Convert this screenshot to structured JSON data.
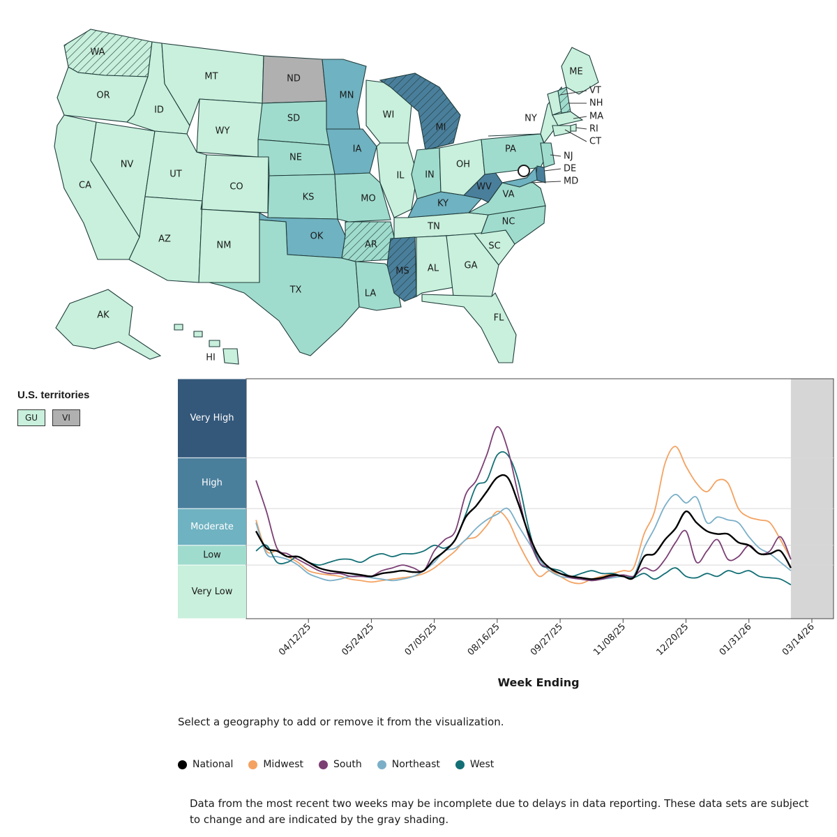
{
  "map": {
    "level_colors": {
      "very_low": "#c8f0dc",
      "low": "#a0dccd",
      "moderate": "#6fb2c1",
      "high": "#4a7f9c",
      "very_high": "#34587a",
      "no_data": "#b0b0b0"
    },
    "states": [
      {
        "abbr": "WA",
        "level": "very_low",
        "hatched": true
      },
      {
        "abbr": "OR",
        "level": "very_low",
        "hatched": false
      },
      {
        "abbr": "CA",
        "level": "very_low",
        "hatched": false
      },
      {
        "abbr": "NV",
        "level": "very_low",
        "hatched": false
      },
      {
        "abbr": "ID",
        "level": "very_low",
        "hatched": false
      },
      {
        "abbr": "MT",
        "level": "very_low",
        "hatched": false
      },
      {
        "abbr": "WY",
        "level": "very_low",
        "hatched": false
      },
      {
        "abbr": "UT",
        "level": "very_low",
        "hatched": false
      },
      {
        "abbr": "CO",
        "level": "very_low",
        "hatched": false
      },
      {
        "abbr": "AZ",
        "level": "very_low",
        "hatched": false
      },
      {
        "abbr": "NM",
        "level": "very_low",
        "hatched": false
      },
      {
        "abbr": "ND",
        "level": "no_data",
        "hatched": false
      },
      {
        "abbr": "SD",
        "level": "low",
        "hatched": false
      },
      {
        "abbr": "NE",
        "level": "low",
        "hatched": false
      },
      {
        "abbr": "KS",
        "level": "low",
        "hatched": false
      },
      {
        "abbr": "OK",
        "level": "moderate",
        "hatched": false
      },
      {
        "abbr": "TX",
        "level": "low",
        "hatched": false
      },
      {
        "abbr": "MN",
        "level": "moderate",
        "hatched": false
      },
      {
        "abbr": "IA",
        "level": "moderate",
        "hatched": false
      },
      {
        "abbr": "MO",
        "level": "low",
        "hatched": false
      },
      {
        "abbr": "AR",
        "level": "low",
        "hatched": true
      },
      {
        "abbr": "LA",
        "level": "low",
        "hatched": false
      },
      {
        "abbr": "WI",
        "level": "very_low",
        "hatched": false
      },
      {
        "abbr": "IL",
        "level": "very_low",
        "hatched": false
      },
      {
        "abbr": "MI",
        "level": "high",
        "hatched": true
      },
      {
        "abbr": "IN",
        "level": "low",
        "hatched": false
      },
      {
        "abbr": "OH",
        "level": "very_low",
        "hatched": false
      },
      {
        "abbr": "KY",
        "level": "moderate",
        "hatched": false
      },
      {
        "abbr": "TN",
        "level": "very_low",
        "hatched": false
      },
      {
        "abbr": "MS",
        "level": "high",
        "hatched": true
      },
      {
        "abbr": "AL",
        "level": "very_low",
        "hatched": false
      },
      {
        "abbr": "GA",
        "level": "very_low",
        "hatched": false
      },
      {
        "abbr": "FL",
        "level": "very_low",
        "hatched": false
      },
      {
        "abbr": "SC",
        "level": "very_low",
        "hatched": false
      },
      {
        "abbr": "NC",
        "level": "low",
        "hatched": false
      },
      {
        "abbr": "VA",
        "level": "low",
        "hatched": false
      },
      {
        "abbr": "WV",
        "level": "high",
        "hatched": false
      },
      {
        "abbr": "PA",
        "level": "low",
        "hatched": false
      },
      {
        "abbr": "NY",
        "level": "very_low",
        "hatched": false
      },
      {
        "abbr": "ME",
        "level": "very_low",
        "hatched": false
      },
      {
        "abbr": "VT",
        "level": "very_low",
        "hatched": false
      },
      {
        "abbr": "NH",
        "level": "low",
        "hatched": true
      },
      {
        "abbr": "MA",
        "level": "very_low",
        "hatched": false
      },
      {
        "abbr": "RI",
        "level": "very_low",
        "hatched": false
      },
      {
        "abbr": "CT",
        "level": "very_low",
        "hatched": false
      },
      {
        "abbr": "NJ",
        "level": "low",
        "hatched": false
      },
      {
        "abbr": "DE",
        "level": "high",
        "hatched": false
      },
      {
        "abbr": "MD",
        "level": "moderate",
        "hatched": false
      },
      {
        "abbr": "AK",
        "level": "very_low",
        "hatched": false
      },
      {
        "abbr": "HI",
        "level": "very_low",
        "hatched": false
      }
    ],
    "callouts": [
      "VT",
      "NH",
      "MA",
      "RI",
      "CT",
      "NJ",
      "DE",
      "MD"
    ]
  },
  "territories": {
    "title": "U.S. territories",
    "items": [
      {
        "abbr": "GU",
        "level": "very_low"
      },
      {
        "abbr": "VI",
        "level": "no_data"
      }
    ]
  },
  "chart_data": {
    "type": "line",
    "xlabel": "Week Ending",
    "ylabel": "",
    "bands": [
      {
        "label": "Very High",
        "color": "#34587a",
        "text_color": "#ffffff",
        "from": 7.2,
        "to": 10
      },
      {
        "label": "High",
        "color": "#4a7f9c",
        "text_color": "#ffffff",
        "from": 5.4,
        "to": 7.2
      },
      {
        "label": "Moderate",
        "color": "#6fb2c1",
        "text_color": "#ffffff",
        "from": 4.1,
        "to": 5.4
      },
      {
        "label": "Low",
        "color": "#a0dccd",
        "text_color": "#1a1a1a",
        "from": 3.4,
        "to": 4.1
      },
      {
        "label": "Very Low",
        "color": "#c8f0dc",
        "text_color": "#1a1a1a",
        "from": 1.5,
        "to": 3.4
      }
    ],
    "ylim": [
      1.5,
      10
    ],
    "xlim_weeks": [
      0,
      51
    ],
    "x_tick_labels": [
      "04/12/25",
      "05/24/25",
      "07/05/25",
      "08/16/25",
      "09/27/25",
      "11/08/25",
      "12/20/25",
      "01/31/26",
      "03/14/26"
    ],
    "x_tick_weeks": [
      5,
      11,
      17,
      23,
      29,
      35,
      41,
      47,
      53
    ],
    "incomplete_from_week": 51,
    "incomplete_to_week": 54,
    "series": [
      {
        "name": "National",
        "color": "#000000",
        "values": [
          4.6,
          4.0,
          3.9,
          3.7,
          3.7,
          3.5,
          3.3,
          3.2,
          3.15,
          3.1,
          3.05,
          3.0,
          3.1,
          3.15,
          3.2,
          3.15,
          3.2,
          3.6,
          3.9,
          4.3,
          5.1,
          5.5,
          6.0,
          6.5,
          6.5,
          5.6,
          4.5,
          3.7,
          3.3,
          3.1,
          3.0,
          2.95,
          2.9,
          2.95,
          3.05,
          3.0,
          2.95,
          3.7,
          3.8,
          4.3,
          4.7,
          5.3,
          4.9,
          4.6,
          4.5,
          4.5,
          4.2,
          4.1,
          3.8,
          3.8,
          3.9,
          3.3
        ]
      },
      {
        "name": "Midwest",
        "color": "#f4a261",
        "values": [
          5.0,
          3.9,
          3.9,
          3.7,
          3.5,
          3.2,
          3.1,
          3.05,
          3.0,
          2.9,
          2.85,
          2.8,
          2.85,
          2.9,
          2.95,
          3.0,
          3.1,
          3.3,
          3.6,
          3.9,
          4.3,
          4.4,
          4.8,
          5.3,
          5.0,
          4.2,
          3.5,
          3.0,
          3.2,
          3.0,
          2.8,
          2.75,
          2.9,
          3.0,
          3.1,
          3.2,
          3.3,
          4.5,
          5.3,
          7.0,
          7.6,
          6.9,
          6.3,
          6.0,
          6.4,
          6.3,
          5.4,
          5.1,
          5.0,
          4.9,
          4.3,
          3.6
        ]
      },
      {
        "name": "South",
        "color": "#7b3f74",
        "values": [
          6.4,
          5.3,
          4.0,
          3.8,
          3.6,
          3.4,
          3.2,
          3.1,
          3.1,
          3.0,
          3.0,
          3.0,
          3.2,
          3.3,
          3.4,
          3.3,
          3.2,
          3.9,
          4.3,
          4.6,
          5.9,
          6.4,
          7.3,
          8.3,
          7.5,
          5.9,
          4.4,
          3.5,
          3.3,
          3.1,
          2.95,
          2.9,
          2.85,
          2.9,
          3.0,
          3.05,
          3.0,
          3.3,
          3.2,
          3.6,
          4.2,
          4.6,
          3.5,
          3.9,
          4.3,
          3.6,
          3.7,
          4.1,
          3.8,
          3.9,
          4.4,
          3.6
        ]
      },
      {
        "name": "Northeast",
        "color": "#7bafc8",
        "values": [
          4.9,
          3.8,
          3.7,
          3.6,
          3.4,
          3.1,
          2.95,
          2.85,
          2.9,
          3.0,
          3.0,
          2.95,
          2.9,
          2.85,
          2.9,
          3.0,
          3.2,
          3.5,
          3.9,
          4.0,
          4.3,
          4.7,
          5.0,
          5.2,
          5.4,
          4.8,
          4.2,
          3.6,
          3.2,
          3.0,
          2.95,
          2.9,
          2.85,
          2.9,
          2.95,
          3.0,
          3.0,
          4.0,
          4.7,
          5.5,
          5.9,
          5.6,
          5.8,
          4.9,
          5.1,
          5.0,
          4.9,
          4.4,
          4.0,
          3.8,
          3.5,
          3.2
        ]
      },
      {
        "name": "West",
        "color": "#126f75",
        "values": [
          3.9,
          4.1,
          3.5,
          3.5,
          3.7,
          3.5,
          3.4,
          3.5,
          3.6,
          3.6,
          3.5,
          3.7,
          3.8,
          3.7,
          3.8,
          3.8,
          3.9,
          4.1,
          4.0,
          4.3,
          5.2,
          6.2,
          6.4,
          7.3,
          7.3,
          6.4,
          4.7,
          3.5,
          3.3,
          3.2,
          3.0,
          3.1,
          3.2,
          3.1,
          3.1,
          3.0,
          2.95,
          3.1,
          2.9,
          3.1,
          3.3,
          3.0,
          2.95,
          3.1,
          3.0,
          3.2,
          3.1,
          3.2,
          3.0,
          2.95,
          2.9,
          2.7
        ]
      }
    ]
  },
  "instruction": "Select a geography to add or remove it from the visualization.",
  "legend": [
    "National",
    "Midwest",
    "South",
    "Northeast",
    "West"
  ],
  "footnote": "Data from the most recent two weeks may be incomplete due to delays in data reporting. These data sets are subject to change and are indicated by the gray shading."
}
